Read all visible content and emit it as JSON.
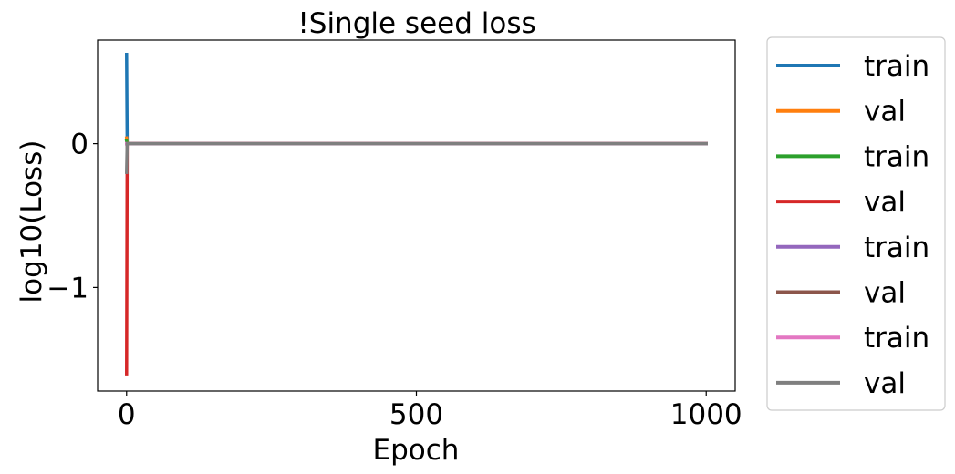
{
  "chart_data": {
    "type": "line",
    "title": "!Single seed loss",
    "xlabel": "Epoch",
    "ylabel": "log10(Loss)",
    "xlim": [
      -50,
      1050
    ],
    "ylim": [
      -1.72,
      0.72
    ],
    "xticks": [
      0,
      500,
      1000
    ],
    "xtick_labels": [
      "0",
      "500",
      "1000"
    ],
    "yticks": [
      -1,
      0
    ],
    "ytick_labels": [
      "−1",
      "0"
    ],
    "grid": false,
    "legend_placement": "outside-right",
    "series": [
      {
        "name": "train",
        "color": "#1f77b4",
        "x": [
          0,
          1,
          2,
          1000
        ],
        "y": [
          0.62,
          0.0,
          0.0,
          0.0
        ]
      },
      {
        "name": "val",
        "color": "#ff7f0e",
        "x": [
          0,
          1,
          2,
          1000
        ],
        "y": [
          0.04,
          0.0,
          0.0,
          0.0
        ]
      },
      {
        "name": "train",
        "color": "#2ca02c",
        "x": [
          0,
          1,
          2,
          1000
        ],
        "y": [
          0.02,
          0.0,
          0.0,
          0.0
        ]
      },
      {
        "name": "val",
        "color": "#d62728",
        "x": [
          0,
          1,
          2,
          1000
        ],
        "y": [
          -1.6,
          0.0,
          0.0,
          0.0
        ]
      },
      {
        "name": "train",
        "color": "#9467bd",
        "x": [
          0,
          1,
          1000
        ],
        "y": [
          0.0,
          0.0,
          0.0
        ]
      },
      {
        "name": "val",
        "color": "#8c564b",
        "x": [
          0,
          1,
          1000
        ],
        "y": [
          0.0,
          0.0,
          0.0
        ]
      },
      {
        "name": "train",
        "color": "#e377c2",
        "x": [
          0,
          1,
          1000
        ],
        "y": [
          0.0,
          0.0,
          0.0
        ]
      },
      {
        "name": "val",
        "color": "#7f7f7f",
        "x": [
          0,
          1,
          2,
          1000
        ],
        "y": [
          -0.2,
          0.0,
          0.0,
          0.0
        ]
      }
    ]
  }
}
